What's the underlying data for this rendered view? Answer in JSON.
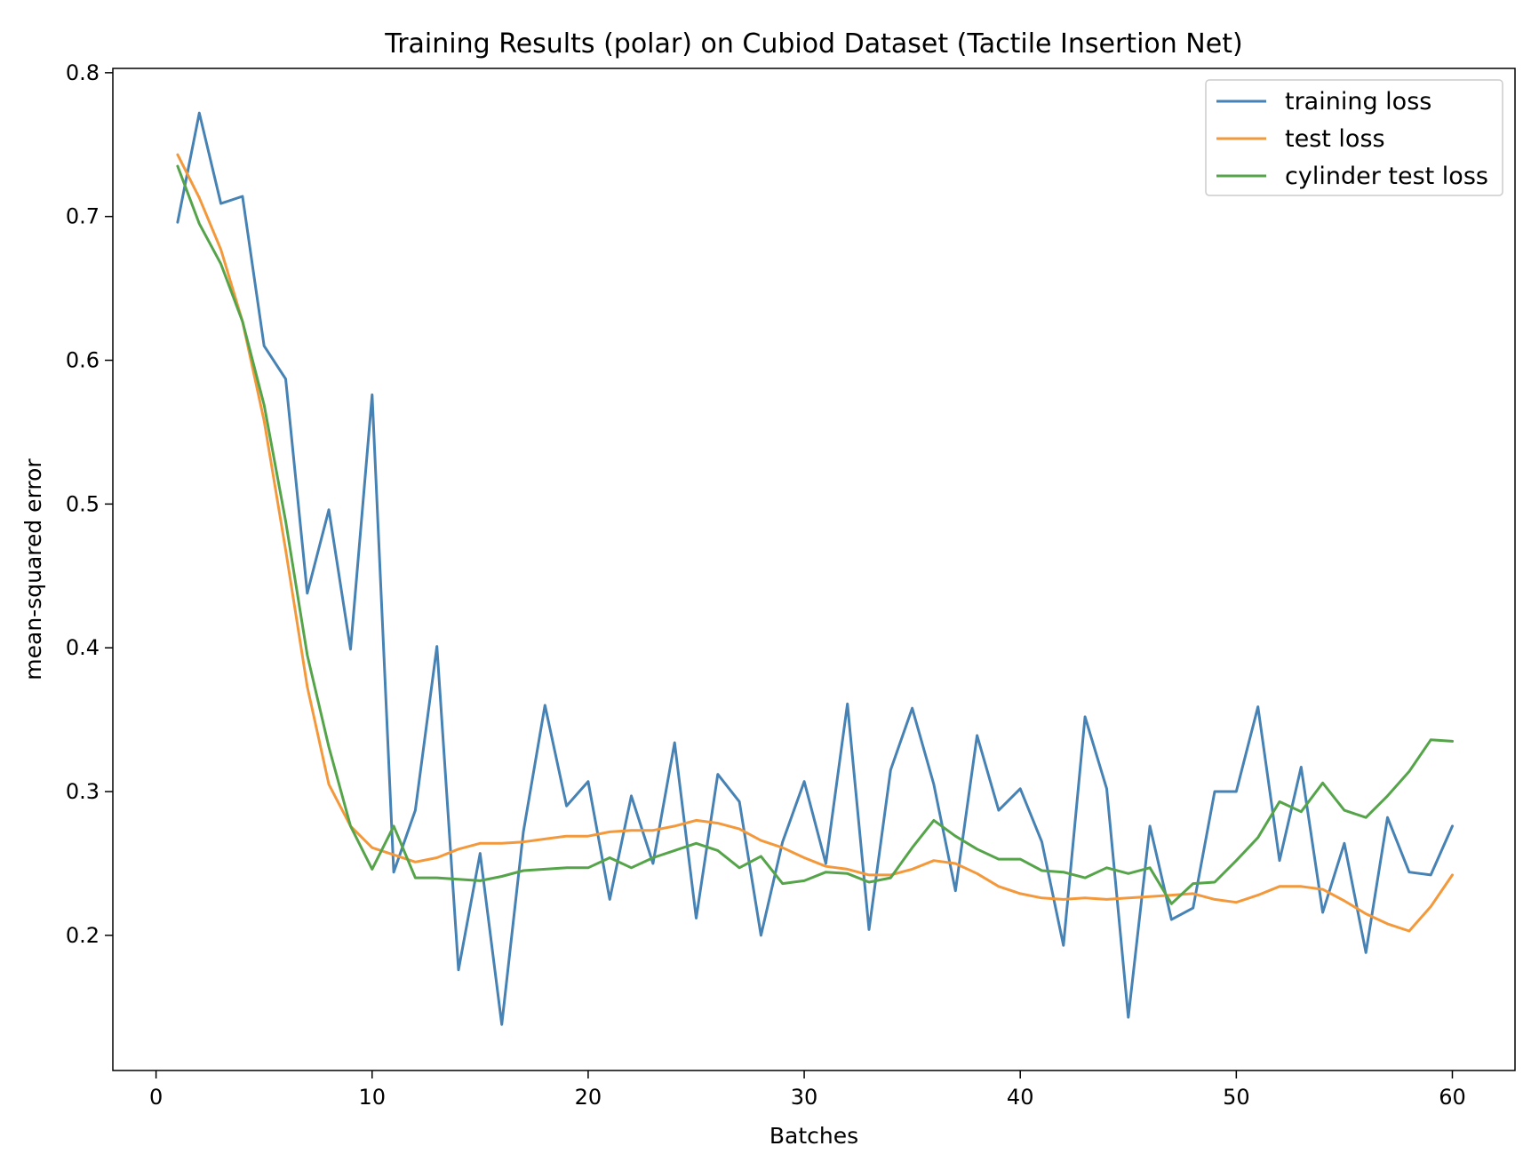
{
  "chart_data": {
    "type": "line",
    "title": "Training Results (polar) on Cubiod Dataset (Tactile Insertion Net)",
    "xlabel": "Batches",
    "ylabel": "mean-squared error",
    "xlim": [
      -2,
      62.9
    ],
    "ylim": [
      0.106,
      0.803
    ],
    "xticks": [
      0,
      10,
      20,
      30,
      40,
      50,
      60
    ],
    "yticks": [
      0.2,
      0.3,
      0.4,
      0.5,
      0.6,
      0.7,
      0.8
    ],
    "xtick_labels": [
      "0",
      "10",
      "20",
      "30",
      "40",
      "50",
      "60"
    ],
    "ytick_labels": [
      "0.2",
      "0.3",
      "0.4",
      "0.5",
      "0.6",
      "0.7",
      "0.8"
    ],
    "grid": false,
    "legend_position": "top-right",
    "x": [
      1,
      2,
      3,
      4,
      5,
      6,
      7,
      8,
      9,
      10,
      11,
      12,
      13,
      14,
      15,
      16,
      17,
      18,
      19,
      20,
      21,
      22,
      23,
      24,
      25,
      26,
      27,
      28,
      29,
      30,
      31,
      32,
      33,
      34,
      35,
      36,
      37,
      38,
      39,
      40,
      41,
      42,
      43,
      44,
      45,
      46,
      47,
      48,
      49,
      50,
      51,
      52,
      53,
      54,
      55,
      56,
      57,
      58,
      59,
      60
    ],
    "series": [
      {
        "name": "training loss",
        "color": "#4682b4",
        "values": [
          0.696,
          0.772,
          0.709,
          0.714,
          0.61,
          0.587,
          0.438,
          0.496,
          0.399,
          0.576,
          0.244,
          0.287,
          0.401,
          0.176,
          0.257,
          0.138,
          0.272,
          0.36,
          0.29,
          0.307,
          0.225,
          0.297,
          0.25,
          0.334,
          0.212,
          0.312,
          0.293,
          0.2,
          0.265,
          0.307,
          0.25,
          0.361,
          0.204,
          0.315,
          0.358,
          0.305,
          0.231,
          0.339,
          0.287,
          0.302,
          0.265,
          0.193,
          0.352,
          0.302,
          0.143,
          0.276,
          0.211,
          0.219,
          0.3,
          0.3,
          0.359,
          0.252,
          0.317,
          0.216,
          0.264,
          0.188,
          0.282,
          0.244,
          0.242,
          0.276
        ]
      },
      {
        "name": "test loss",
        "color": "#f4993b",
        "values": [
          0.743,
          0.713,
          0.677,
          0.627,
          0.558,
          0.468,
          0.373,
          0.305,
          0.276,
          0.261,
          0.256,
          0.251,
          0.254,
          0.26,
          0.264,
          0.264,
          0.265,
          0.267,
          0.269,
          0.269,
          0.272,
          0.273,
          0.273,
          0.276,
          0.28,
          0.278,
          0.274,
          0.266,
          0.261,
          0.254,
          0.248,
          0.246,
          0.242,
          0.242,
          0.246,
          0.252,
          0.25,
          0.243,
          0.234,
          0.229,
          0.226,
          0.225,
          0.226,
          0.225,
          0.226,
          0.227,
          0.228,
          0.229,
          0.225,
          0.223,
          0.228,
          0.234,
          0.234,
          0.232,
          0.224,
          0.215,
          0.208,
          0.203,
          0.22,
          0.242
        ]
      },
      {
        "name": "cylinder test loss",
        "color": "#55a44a",
        "values": [
          0.735,
          0.695,
          0.667,
          0.627,
          0.569,
          0.488,
          0.395,
          0.331,
          0.276,
          0.246,
          0.276,
          0.24,
          0.24,
          0.239,
          0.238,
          0.241,
          0.245,
          0.246,
          0.247,
          0.247,
          0.254,
          0.247,
          0.254,
          0.259,
          0.264,
          0.259,
          0.247,
          0.255,
          0.236,
          0.238,
          0.244,
          0.243,
          0.237,
          0.24,
          0.261,
          0.28,
          0.269,
          0.26,
          0.253,
          0.253,
          0.245,
          0.244,
          0.24,
          0.247,
          0.243,
          0.247,
          0.222,
          0.236,
          0.237,
          0.252,
          0.268,
          0.293,
          0.286,
          0.306,
          0.287,
          0.282,
          0.297,
          0.314,
          0.336,
          0.335
        ]
      }
    ]
  }
}
